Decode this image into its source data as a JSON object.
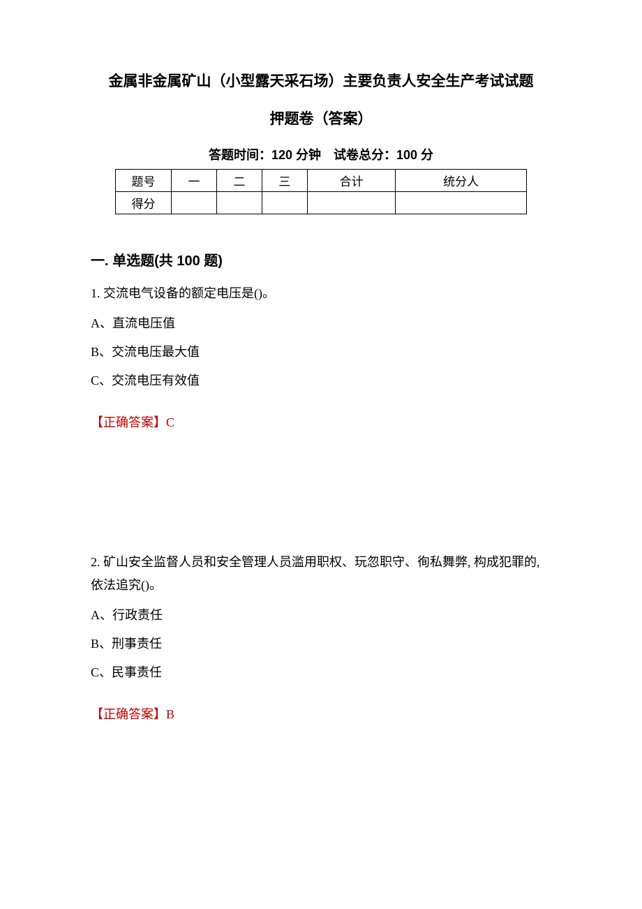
{
  "title_line1": "金属非金属矿山（小型露天采石场）主要负责人安全生产考试试题",
  "title_line2": "押题卷（答案）",
  "timing_label": "答题时间：120 分钟 试卷总分：100 分",
  "score_table": {
    "row1": [
      "题号",
      "一",
      "二",
      "三",
      "合计",
      "统分人"
    ],
    "row2_label": "得分"
  },
  "section_heading": "一. 单选题(共 100 题)",
  "q1": {
    "text": "1. 交流电气设备的额定电压是()。",
    "optA": "A、直流电压值",
    "optB": "B、交流电压最大值",
    "optC": "C、交流电压有效值",
    "answer": "【正确答案】C"
  },
  "q2": {
    "text": "2. 矿山安全监督人员和安全管理人员滥用职权、玩忽职守、徇私舞弊, 构成犯罪的, 依法追究()。",
    "optA": "A、行政责任",
    "optB": "B、刑事责任",
    "optC": "C、民事责任",
    "answer": "【正确答案】B"
  },
  "colors": {
    "text": "#000000",
    "answer": "#c00000",
    "background": "#ffffff",
    "border": "#000000"
  },
  "typography": {
    "title_fontsize": 21,
    "body_fontsize": 18,
    "heading_fontsize": 20,
    "body_family": "SimSun",
    "heading_family": "SimHei"
  }
}
